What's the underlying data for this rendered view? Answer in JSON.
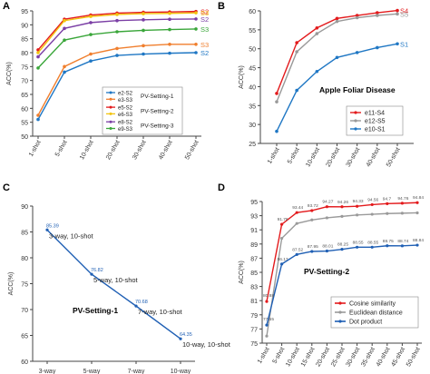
{
  "chart_data": [
    {
      "panel": "A",
      "type": "line",
      "ylabel": "ACC(%)",
      "ylim": [
        50,
        95
      ],
      "yticks": [
        50,
        55,
        60,
        65,
        70,
        75,
        80,
        85,
        90,
        95
      ],
      "categories": [
        "1-shot",
        "5-shot",
        "10-shot",
        "20-shot",
        "30-shot",
        "40-shot",
        "50-shot"
      ],
      "legend_groups": [
        "PV-Setting-1",
        "PV-Setting-2",
        "PV-Setting-3"
      ],
      "series": [
        {
          "name": "e2-S2",
          "end_label": "S2",
          "color": "#1f77c4",
          "values": [
            56.0,
            73.0,
            77.0,
            79.0,
            79.5,
            79.8,
            80.0
          ]
        },
        {
          "name": "e3-S3",
          "end_label": "S3",
          "color": "#f07f2e",
          "values": [
            57.5,
            75.0,
            79.5,
            81.5,
            82.5,
            83.0,
            83.0
          ]
        },
        {
          "name": "e5-S2",
          "end_label": "S2",
          "color": "#e31a1c",
          "values": [
            81.0,
            92.0,
            93.5,
            94.2,
            94.5,
            94.6,
            94.8
          ]
        },
        {
          "name": "e6-S3",
          "end_label": "S3",
          "color": "#f2c40f",
          "values": [
            80.0,
            91.5,
            93.0,
            93.7,
            94.0,
            94.1,
            94.3
          ]
        },
        {
          "name": "e8-S2",
          "end_label": "S2",
          "color": "#7b3fa5",
          "values": [
            78.5,
            88.7,
            90.8,
            91.5,
            91.8,
            92.0,
            92.1
          ]
        },
        {
          "name": "e9-S3",
          "end_label": "S3",
          "color": "#3aa63a",
          "values": [
            74.5,
            84.5,
            86.5,
            87.5,
            88.0,
            88.3,
            88.5
          ]
        }
      ]
    },
    {
      "panel": "B",
      "type": "line",
      "title": "Apple Foliar Disease",
      "ylabel": "ACC(%)",
      "ylim": [
        25,
        60
      ],
      "yticks": [
        25,
        30,
        35,
        40,
        45,
        50,
        55,
        60
      ],
      "categories": [
        "1-shot",
        "5-shot",
        "10-shot",
        "20-shot",
        "30-shot",
        "40-shot",
        "50-shot"
      ],
      "series": [
        {
          "name": "e11-S4",
          "end_label": "S4",
          "color": "#e31a1c",
          "values": [
            38.2,
            51.6,
            55.5,
            58.0,
            58.8,
            59.5,
            60.1
          ]
        },
        {
          "name": "e12-S5",
          "end_label": "S5",
          "color": "#999999",
          "values": [
            36.0,
            49.2,
            54.0,
            57.2,
            58.2,
            58.8,
            59.2
          ]
        },
        {
          "name": "e10-S1",
          "end_label": "S1",
          "color": "#1f77c4",
          "values": [
            28.2,
            39.0,
            44.0,
            47.7,
            49.0,
            50.3,
            51.3
          ]
        }
      ]
    },
    {
      "panel": "C",
      "type": "line",
      "title": "PV-Setting-1",
      "ylabel": "ACC(%)",
      "ylim": [
        60,
        90
      ],
      "yticks": [
        60,
        65,
        70,
        75,
        80,
        85,
        90
      ],
      "categories": [
        "3-way",
        "5-way",
        "7-way",
        "10-way"
      ],
      "series": [
        {
          "name": "",
          "color": "#1f5fb4",
          "values": [
            85.39,
            76.82,
            70.68,
            64.35
          ],
          "value_labels": [
            "85.39",
            "76.82",
            "70.68",
            "64.35"
          ],
          "point_labels": [
            "3-way, 10-shot",
            "5-way, 10-shot",
            "7-way, 10-shot",
            "10-way, 10-shot"
          ]
        }
      ]
    },
    {
      "panel": "D",
      "type": "line",
      "title": "PV-Setting-2",
      "ylabel": "ACC(%)",
      "ylim": [
        75,
        95
      ],
      "yticks": [
        75,
        77,
        79,
        81,
        83,
        85,
        87,
        89,
        91,
        93,
        95
      ],
      "categories": [
        "1-shot",
        "5-shot",
        "10-shot",
        "15-shot",
        "20-shot",
        "25-shot",
        "30-shot",
        "35-shot",
        "40-shot",
        "45-shot",
        "50-shot"
      ],
      "series": [
        {
          "name": "Cosine similarity",
          "color": "#e31a1c",
          "values": [
            80.88,
            91.78,
            93.44,
            93.72,
            94.27,
            94.26,
            94.33,
            94.56,
            94.7,
            94.76,
            94.84
          ],
          "value_labels": [
            "80.88",
            "91.78",
            "93.44",
            "93.72",
            "94.27",
            "94.26",
            "94.33",
            "94.56",
            "94.7",
            "94.76",
            "94.84"
          ]
        },
        {
          "name": "Euclidean distance",
          "color": "#9a9a9a",
          "values": [
            76.0,
            89.8,
            91.9,
            92.4,
            92.7,
            92.9,
            93.1,
            93.2,
            93.3,
            93.35,
            93.4
          ],
          "value_labels": []
        },
        {
          "name": "Dot product",
          "color": "#1f5fb4",
          "values": [
            77.55,
            86.17,
            87.52,
            87.95,
            88.01,
            88.25,
            88.55,
            88.55,
            88.75,
            88.74,
            88.84
          ],
          "value_labels": [
            "77.55",
            "86.17",
            "87.52",
            "87.95",
            "88.01",
            "88.25",
            "88.55",
            "88.55",
            "88.75",
            "88.74",
            "88.84"
          ]
        }
      ]
    }
  ],
  "panel_letters": {
    "a": "A",
    "b": "B",
    "c": "C",
    "d": "D"
  }
}
